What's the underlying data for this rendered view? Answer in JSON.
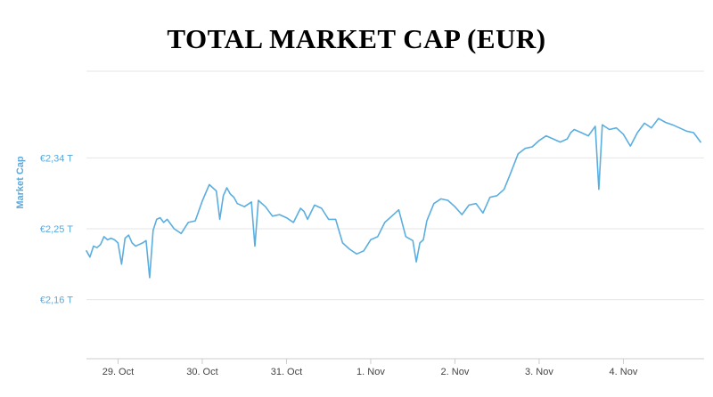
{
  "chart_data": {
    "type": "line",
    "title": "TOTAL MARKET CAP (EUR)",
    "ylabel": "Market Cap",
    "xlabel": "",
    "color": "#5aaee0",
    "y_unit": "T EUR",
    "ylim": [
      2.085,
      2.45
    ],
    "xlim": [
      "2021-10-28T15:00",
      "2021-11-04T23:00"
    ],
    "y_ticks": [
      {
        "value": 2.16,
        "label": "€2,16 T"
      },
      {
        "value": 2.25,
        "label": "€2,25 T"
      },
      {
        "value": 2.34,
        "label": "€2,34 T"
      }
    ],
    "x_ticks": [
      {
        "value": "2021-10-29T00:00",
        "label": "29. Oct"
      },
      {
        "value": "2021-10-30T00:00",
        "label": "30. Oct"
      },
      {
        "value": "2021-10-31T00:00",
        "label": "31. Oct"
      },
      {
        "value": "2021-11-01T00:00",
        "label": "1. Nov"
      },
      {
        "value": "2021-11-02T00:00",
        "label": "2. Nov"
      },
      {
        "value": "2021-11-03T00:00",
        "label": "3. Nov"
      },
      {
        "value": "2021-11-04T00:00",
        "label": "4. Nov"
      }
    ],
    "grid": true,
    "legend": "none",
    "series": [
      {
        "x": [
          "2021-10-28T15:00",
          "2021-10-28T16:00",
          "2021-10-28T17:00",
          "2021-10-28T18:00",
          "2021-10-28T19:00",
          "2021-10-28T20:00",
          "2021-10-28T21:00",
          "2021-10-28T22:00",
          "2021-10-28T23:00",
          "2021-10-29T00:00",
          "2021-10-29T01:00",
          "2021-10-29T02:00",
          "2021-10-29T03:00",
          "2021-10-29T04:00",
          "2021-10-29T05:00",
          "2021-10-29T06:00",
          "2021-10-29T07:00",
          "2021-10-29T08:00",
          "2021-10-29T09:00",
          "2021-10-29T10:00",
          "2021-10-29T11:00",
          "2021-10-29T12:00",
          "2021-10-29T13:00",
          "2021-10-29T14:00",
          "2021-10-29T16:00",
          "2021-10-29T18:00",
          "2021-10-29T20:00",
          "2021-10-29T22:00",
          "2021-10-30T00:00",
          "2021-10-30T02:00",
          "2021-10-30T04:00",
          "2021-10-30T05:00",
          "2021-10-30T06:00",
          "2021-10-30T07:00",
          "2021-10-30T08:00",
          "2021-10-30T09:00",
          "2021-10-30T10:00",
          "2021-10-30T12:00",
          "2021-10-30T14:00",
          "2021-10-30T15:00",
          "2021-10-30T16:00",
          "2021-10-30T18:00",
          "2021-10-30T20:00",
          "2021-10-30T22:00",
          "2021-10-31T00:00",
          "2021-10-31T02:00",
          "2021-10-31T04:00",
          "2021-10-31T05:00",
          "2021-10-31T06:00",
          "2021-10-31T08:00",
          "2021-10-31T10:00",
          "2021-10-31T12:00",
          "2021-10-31T14:00",
          "2021-10-31T16:00",
          "2021-10-31T18:00",
          "2021-10-31T20:00",
          "2021-10-31T22:00",
          "2021-11-01T00:00",
          "2021-11-01T02:00",
          "2021-11-01T04:00",
          "2021-11-01T06:00",
          "2021-11-01T08:00",
          "2021-11-01T10:00",
          "2021-11-01T12:00",
          "2021-11-01T13:00",
          "2021-11-01T14:00",
          "2021-11-01T15:00",
          "2021-11-01T16:00",
          "2021-11-01T18:00",
          "2021-11-01T20:00",
          "2021-11-01T22:00",
          "2021-11-02T00:00",
          "2021-11-02T02:00",
          "2021-11-02T04:00",
          "2021-11-02T06:00",
          "2021-11-02T08:00",
          "2021-11-02T10:00",
          "2021-11-02T12:00",
          "2021-11-02T14:00",
          "2021-11-02T16:00",
          "2021-11-02T18:00",
          "2021-11-02T20:00",
          "2021-11-02T22:00",
          "2021-11-03T00:00",
          "2021-11-03T02:00",
          "2021-11-03T04:00",
          "2021-11-03T06:00",
          "2021-11-03T08:00",
          "2021-11-03T09:00",
          "2021-11-03T10:00",
          "2021-11-03T12:00",
          "2021-11-03T14:00",
          "2021-11-03T16:00",
          "2021-11-03T17:00",
          "2021-11-03T18:00",
          "2021-11-03T20:00",
          "2021-11-03T22:00",
          "2021-11-04T00:00",
          "2021-11-04T02:00",
          "2021-11-04T04:00",
          "2021-11-04T06:00",
          "2021-11-04T08:00",
          "2021-11-04T10:00",
          "2021-11-04T12:00",
          "2021-11-04T14:00",
          "2021-11-04T16:00",
          "2021-11-04T18:00",
          "2021-11-04T20:00",
          "2021-11-04T22:00"
        ],
        "values": [
          2.222,
          2.214,
          2.228,
          2.226,
          2.23,
          2.24,
          2.236,
          2.238,
          2.236,
          2.232,
          2.205,
          2.238,
          2.242,
          2.232,
          2.228,
          2.23,
          2.232,
          2.235,
          2.188,
          2.248,
          2.262,
          2.264,
          2.258,
          2.262,
          2.25,
          2.244,
          2.258,
          2.26,
          2.285,
          2.306,
          2.298,
          2.262,
          2.292,
          2.302,
          2.294,
          2.29,
          2.282,
          2.278,
          2.284,
          2.228,
          2.286,
          2.278,
          2.266,
          2.268,
          2.264,
          2.258,
          2.276,
          2.272,
          2.262,
          2.28,
          2.276,
          2.262,
          2.262,
          2.232,
          2.224,
          2.218,
          2.222,
          2.236,
          2.24,
          2.258,
          2.266,
          2.274,
          2.24,
          2.235,
          2.208,
          2.232,
          2.236,
          2.26,
          2.282,
          2.288,
          2.286,
          2.278,
          2.268,
          2.28,
          2.282,
          2.27,
          2.29,
          2.292,
          2.3,
          2.322,
          2.345,
          2.352,
          2.354,
          2.362,
          2.368,
          2.364,
          2.36,
          2.364,
          2.372,
          2.376,
          2.372,
          2.368,
          2.38,
          2.3,
          2.382,
          2.376,
          2.378,
          2.37,
          2.355,
          2.372,
          2.384,
          2.378,
          2.39,
          2.385,
          2.382,
          2.378,
          2.374,
          2.372,
          2.36
        ]
      }
    ]
  }
}
